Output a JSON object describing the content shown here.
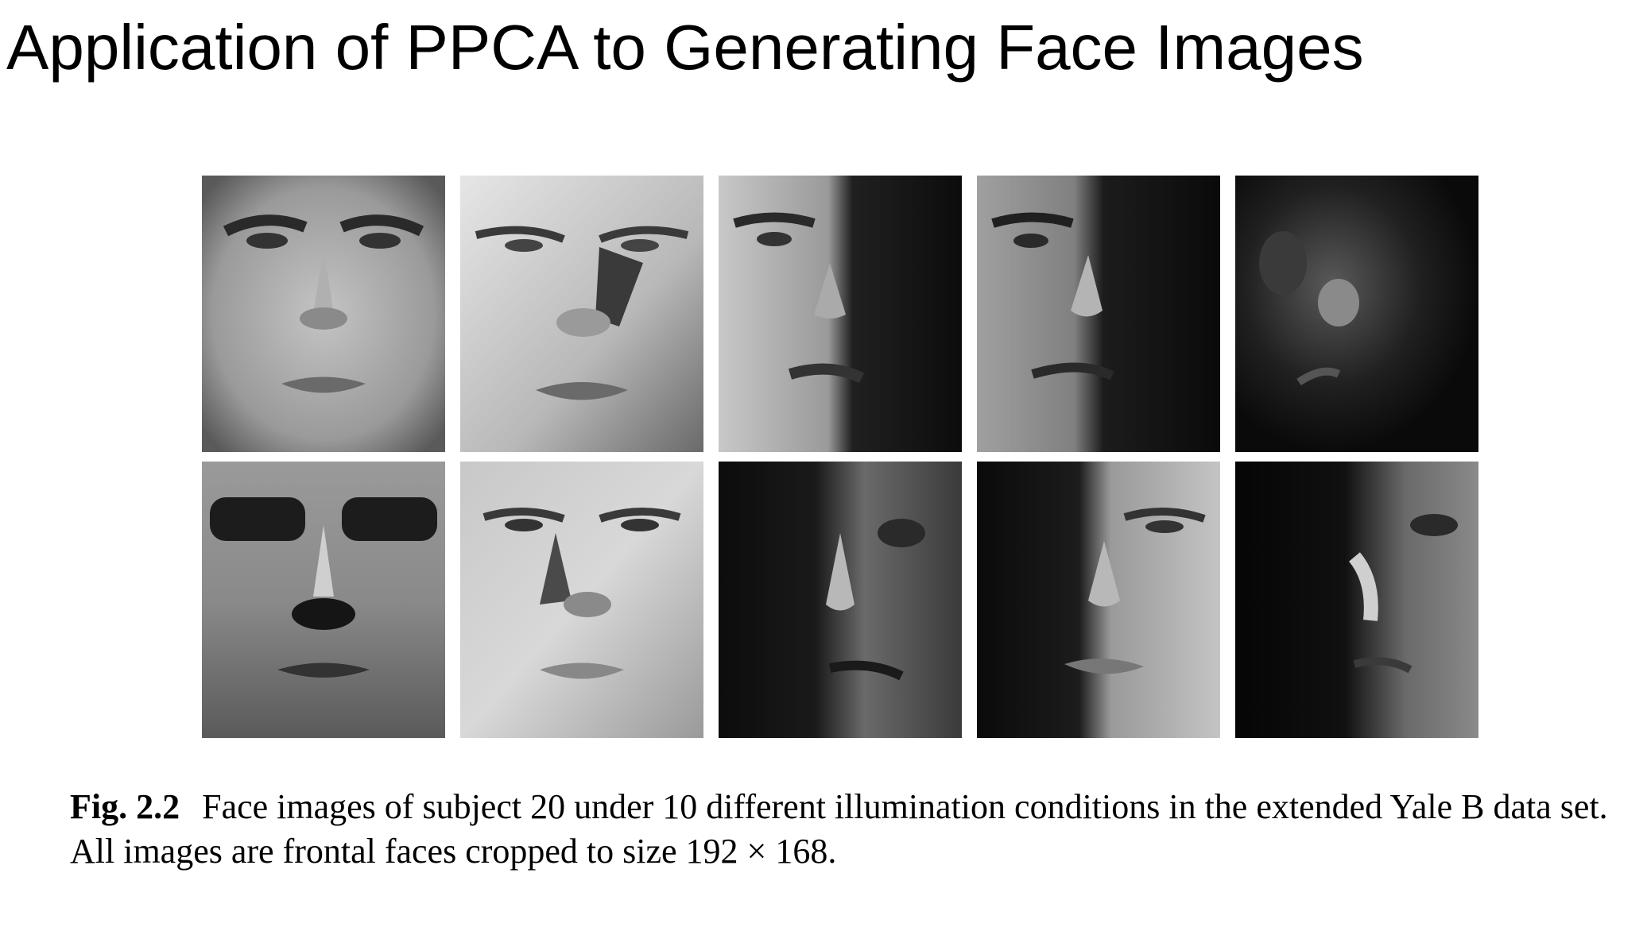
{
  "slide": {
    "title": "Application of PPCA to Generating Face Images"
  },
  "figure": {
    "image_description_icon": "face-photo-grid",
    "rows": 2,
    "columns": 5,
    "faces": [
      {
        "illumination": "frontal-even"
      },
      {
        "illumination": "overhead-right"
      },
      {
        "illumination": "left-half-lit"
      },
      {
        "illumination": "left-lit-strong"
      },
      {
        "illumination": "mostly-dark-center"
      },
      {
        "illumination": "overhead-top-dark-eyes"
      },
      {
        "illumination": "top-bright"
      },
      {
        "illumination": "right-side-dark"
      },
      {
        "illumination": "right-half-lit"
      },
      {
        "illumination": "right-rim-lit"
      }
    ]
  },
  "caption": {
    "label": "Fig. 2.2",
    "text": "Face images of subject 20 under 10 different illumination conditions in the extended Yale B data set. All images are frontal faces cropped to size 192 × 168."
  }
}
